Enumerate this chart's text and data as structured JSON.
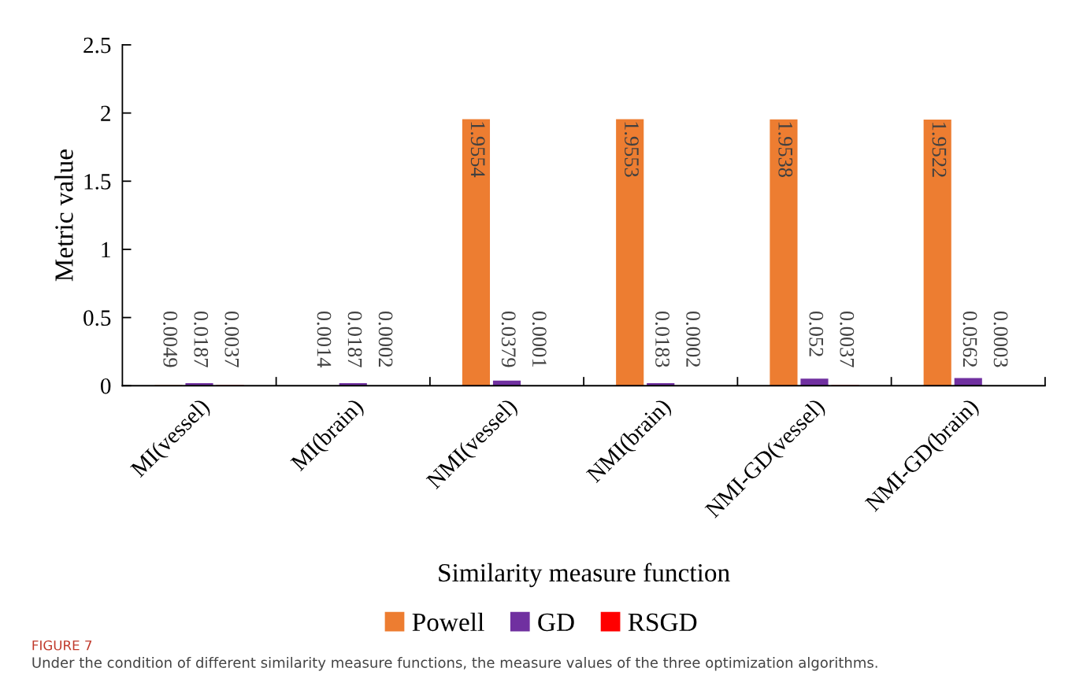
{
  "chart_data": {
    "type": "bar",
    "xlabel": "Similarity measure function",
    "ylabel": "Metric value",
    "categories": [
      "MI(vessel)",
      "MI(brain)",
      "NMI(vessel)",
      "NMI(brain)",
      "NMI-GD(vessel)",
      "NMI-GD(brain)"
    ],
    "series": [
      {
        "name": "Powell",
        "color": "#ed7d31",
        "values": [
          0.0049,
          0.0014,
          1.9554,
          1.9553,
          1.9538,
          1.9522
        ]
      },
      {
        "name": "GD",
        "color": "#7030a0",
        "values": [
          0.0187,
          0.0187,
          0.0379,
          0.0183,
          0.052,
          0.0562
        ]
      },
      {
        "name": "RSGD",
        "color": "#ff0000",
        "values": [
          0.0037,
          0.0002,
          0.0001,
          0.0002,
          0.0037,
          0.0003
        ]
      }
    ],
    "ylim": [
      0,
      2.5
    ],
    "yticks": [
      0,
      0.5,
      1,
      1.5,
      2,
      2.5
    ],
    "data_labels": true,
    "legend": "bottom",
    "grid": false,
    "annotations": [
      "FIGURE 7",
      "Under the condition of different similarity measure functions, the measure values of the three optimization algorithms."
    ]
  }
}
